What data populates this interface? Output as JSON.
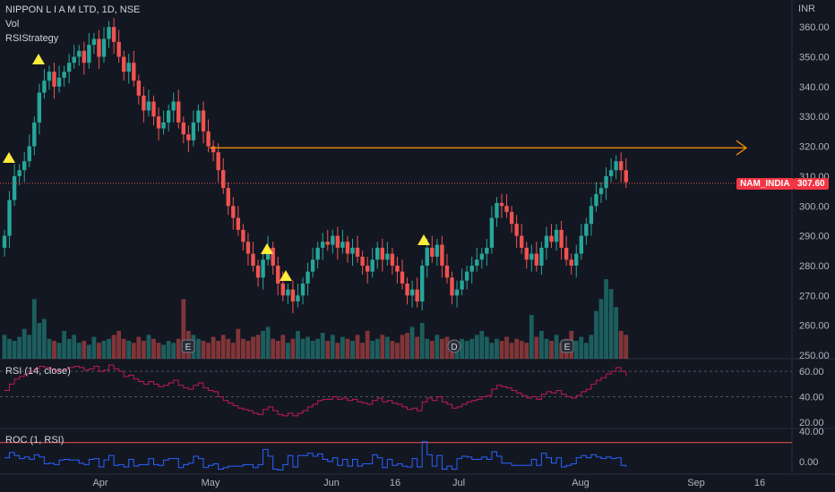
{
  "header": {
    "symbol_line": "NIPPON L I A M LTD, 1D, NSE",
    "vol_label": "Vol",
    "strategy_label": "RSIStrategy"
  },
  "price_axis": {
    "unit": "INR"
  },
  "rsi_panel": {
    "title": "RSI (14, close)"
  },
  "roc_panel": {
    "title": "ROC (1, RSI)"
  },
  "tags": {
    "symbol_tag": "NAM_INDIA",
    "last_price_tag": "307.60"
  },
  "event_markers": [
    "E",
    "D",
    "E"
  ],
  "colors": {
    "up": "#26a69a",
    "down": "#ef5350",
    "rsi_line": "#c2185b",
    "roc_line": "#2962ff",
    "arrow": "#ff9800",
    "triangle": "#ffeb3b",
    "background": "#131722"
  },
  "chart_data": [
    {
      "type": "candlestick",
      "title": "NIPPON L I A M LTD, 1D, NSE",
      "ylabel": "INR",
      "ylim": [
        250,
        365
      ],
      "y_ticks": [
        250,
        260,
        270,
        280,
        290,
        300,
        310,
        320,
        330,
        340,
        350,
        360
      ],
      "x_tick_labels": [
        "Apr",
        "May",
        "Jun",
        "16",
        "Jul",
        "Aug",
        "Sep",
        "16"
      ],
      "last_price": 307.6,
      "resistance_level": 319.5,
      "closes": [
        290,
        302,
        310,
        312,
        315,
        320,
        328,
        338,
        342,
        345,
        340,
        343,
        345,
        348,
        350,
        352,
        348,
        354,
        356,
        350,
        356,
        360,
        355,
        350,
        345,
        348,
        342,
        337,
        332,
        335,
        330,
        326,
        328,
        332,
        335,
        328,
        324,
        322,
        328,
        332,
        325,
        320,
        318,
        312,
        306,
        300,
        296,
        292,
        288,
        284,
        280,
        276,
        282,
        286,
        280,
        274,
        270,
        272,
        268,
        270,
        274,
        278,
        282,
        286,
        288,
        287,
        290,
        286,
        288,
        284,
        286,
        283,
        280,
        278,
        282,
        286,
        282,
        284,
        280,
        278,
        274,
        270,
        272,
        268,
        280,
        286,
        283,
        287,
        280,
        276,
        270,
        272,
        275,
        278,
        280,
        282,
        284,
        286,
        296,
        301,
        300,
        298,
        294,
        290,
        286,
        282,
        284,
        280,
        286,
        290,
        288,
        292,
        286,
        282,
        280,
        284,
        290,
        294,
        300,
        304,
        306,
        310,
        312,
        315,
        312,
        308
      ],
      "volumes": [
        12,
        10,
        9,
        11,
        15,
        12,
        30,
        18,
        20,
        10,
        9,
        8,
        14,
        10,
        12,
        8,
        9,
        7,
        11,
        8,
        9,
        10,
        12,
        14,
        10,
        9,
        8,
        11,
        9,
        12,
        10,
        8,
        7,
        9,
        8,
        10,
        30,
        14,
        12,
        10,
        9,
        8,
        11,
        9,
        12,
        10,
        8,
        15,
        10,
        9,
        11,
        12,
        14,
        16,
        10,
        9,
        12,
        8,
        10,
        14,
        10,
        11,
        9,
        10,
        13,
        9,
        12,
        8,
        11,
        10,
        9,
        12,
        8,
        14,
        9,
        10,
        12,
        11,
        9,
        8,
        12,
        13,
        16,
        11,
        18,
        10,
        9,
        12,
        10,
        11,
        9,
        8,
        10,
        9,
        10,
        12,
        14,
        11,
        8,
        10,
        9,
        11,
        8,
        10,
        9,
        8,
        22,
        11,
        14,
        10,
        9,
        12,
        8,
        10,
        14,
        9,
        11,
        8,
        12,
        24,
        30,
        40,
        35,
        26,
        14,
        12
      ],
      "volume_ylim": [
        0,
        45
      ]
    },
    {
      "type": "line",
      "title": "RSI (14, close)",
      "ylim": [
        15,
        70
      ],
      "y_ticks": [
        20,
        40,
        60
      ],
      "bands": [
        40,
        60
      ],
      "values": [
        45,
        50,
        54,
        56,
        58,
        60,
        62,
        64,
        63,
        62,
        60,
        61,
        62,
        63,
        64,
        63,
        61,
        62,
        64,
        60,
        61,
        65,
        62,
        60,
        56,
        57,
        54,
        52,
        50,
        52,
        50,
        48,
        49,
        51,
        53,
        49,
        47,
        46,
        49,
        51,
        47,
        45,
        44,
        40,
        37,
        35,
        33,
        31,
        30,
        29,
        27,
        26,
        30,
        32,
        29,
        26,
        25,
        27,
        25,
        27,
        29,
        32,
        34,
        37,
        38,
        38,
        40,
        38,
        39,
        37,
        38,
        36,
        35,
        34,
        37,
        39,
        36,
        37,
        35,
        34,
        32,
        30,
        31,
        29,
        36,
        39,
        37,
        40,
        36,
        34,
        31,
        32,
        34,
        36,
        37,
        38,
        40,
        41,
        46,
        49,
        48,
        47,
        45,
        43,
        41,
        39,
        40,
        38,
        42,
        44,
        43,
        45,
        42,
        40,
        39,
        41,
        44,
        46,
        50,
        53,
        55,
        58,
        60,
        63,
        60,
        56
      ]
    },
    {
      "type": "line",
      "title": "ROC (1, RSI)",
      "ylim": [
        -20,
        40
      ],
      "y_ticks": [
        0,
        40
      ],
      "reference_line": 25,
      "values": [
        5,
        12,
        8,
        4,
        6,
        3,
        9,
        6,
        -3,
        -2,
        -4,
        2,
        3,
        2,
        2,
        -2,
        -4,
        3,
        4,
        -7,
        2,
        8,
        -5,
        -4,
        -7,
        3,
        -6,
        -4,
        -4,
        4,
        -4,
        -5,
        2,
        4,
        4,
        -8,
        -4,
        -2,
        7,
        4,
        -8,
        -5,
        -3,
        -10,
        -8,
        -6,
        -6,
        -6,
        -4,
        -4,
        -8,
        -4,
        16,
        7,
        -10,
        -11,
        -4,
        8,
        -7,
        8,
        8,
        11,
        7,
        10,
        3,
        0,
        5,
        -5,
        3,
        -6,
        3,
        -6,
        -3,
        -3,
        9,
        5,
        -8,
        3,
        -5,
        -3,
        -6,
        -7,
        4,
        -7,
        26,
        9,
        -6,
        8,
        -10,
        -6,
        -10,
        4,
        7,
        6,
        3,
        3,
        6,
        3,
        13,
        7,
        -2,
        -2,
        -5,
        -5,
        -5,
        -5,
        3,
        -5,
        11,
        5,
        -2,
        5,
        -7,
        -5,
        -3,
        5,
        8,
        5,
        9,
        6,
        4,
        6,
        4,
        5,
        -5,
        -7
      ]
    }
  ]
}
